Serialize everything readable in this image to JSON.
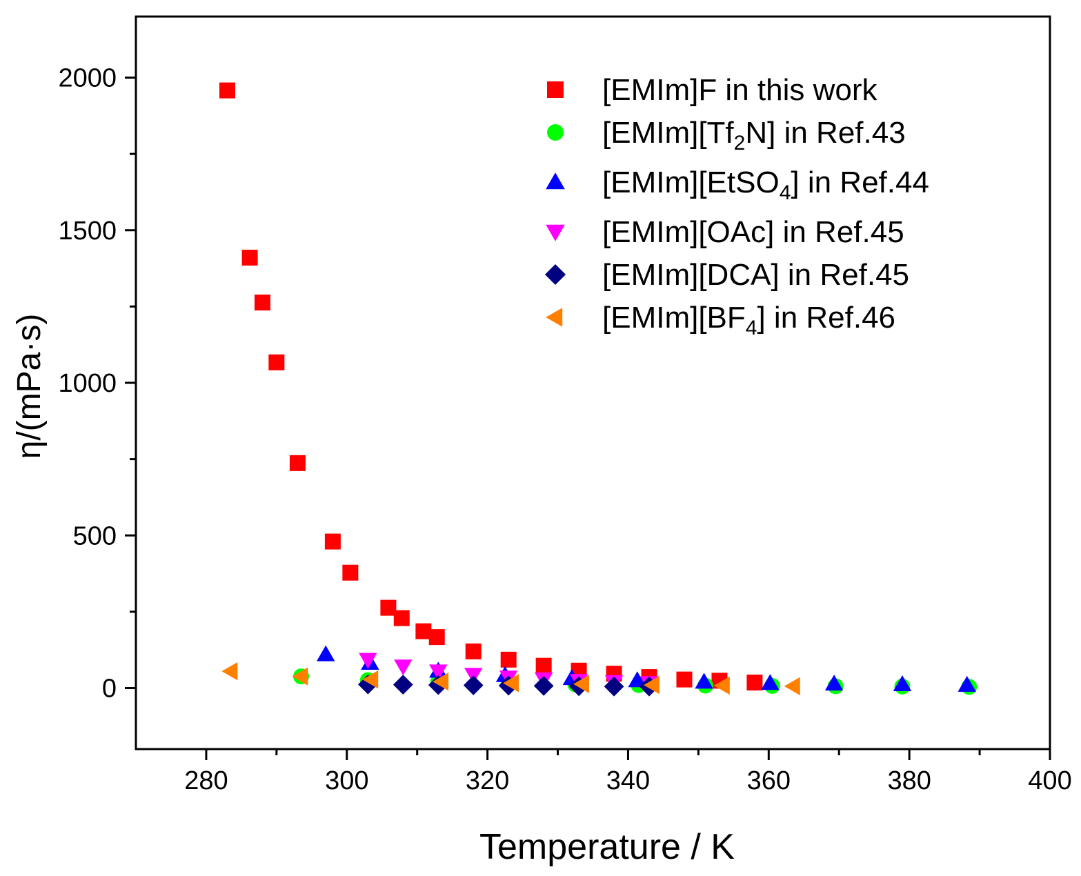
{
  "chart_data": {
    "type": "scatter",
    "title": "",
    "xlabel": "Temperature / K",
    "ylabel": "η/(mPa·s)",
    "xlim": [
      270,
      400
    ],
    "ylim": [
      -200,
      2200
    ],
    "xticks": [
      280,
      300,
      320,
      340,
      360,
      380,
      400
    ],
    "yticks": [
      0,
      500,
      1000,
      1500,
      2000
    ],
    "grid": false,
    "legend_position": "top-right",
    "series": [
      {
        "name": "[EMIm]F in this work",
        "label_parts": [
          {
            "t": "[EMIm]F in this work"
          }
        ],
        "marker": "square",
        "color": "#ff0000",
        "x": [
          283,
          286.2,
          288,
          290,
          293,
          298,
          300.5,
          305.9,
          307.8,
          310.9,
          312.8,
          318,
          323,
          328,
          333,
          338,
          343,
          348,
          353,
          358
        ],
        "y": [
          1958,
          1410,
          1263,
          1067,
          737,
          480,
          378,
          263,
          229,
          186,
          167,
          120,
          93,
          73,
          57,
          47,
          36,
          28,
          24,
          18
        ]
      },
      {
        "name": "[EMIm][Tf2N] in Ref.43",
        "label_parts": [
          {
            "t": "[EMIm][Tf"
          },
          {
            "t": "2",
            "sub": true
          },
          {
            "t": "N] in Ref.43"
          }
        ],
        "marker": "circle",
        "color": "#00ff00",
        "x": [
          293.5,
          303,
          313,
          323,
          332.5,
          341.5,
          351,
          360.5,
          369.5,
          379,
          388.5
        ],
        "y": [
          38,
          26,
          20,
          15,
          12,
          10,
          8,
          7,
          6,
          5,
          4
        ]
      },
      {
        "name": "[EMIm][EtSO4] in Ref.44",
        "label_parts": [
          {
            "t": "[EMIm][EtSO"
          },
          {
            "t": "4",
            "sub": true
          },
          {
            "t": "] in Ref.44"
          }
        ],
        "marker": "triangle-up",
        "color": "#0000ff",
        "x": [
          297,
          303.3,
          313,
          322.5,
          332,
          341.3,
          350.8,
          360.2,
          369.3,
          379,
          388.2
        ],
        "y": [
          110,
          82,
          56,
          42,
          32,
          25,
          20,
          16,
          14,
          12,
          10
        ]
      },
      {
        "name": "[EMIm][OAc] in Ref.45",
        "label_parts": [
          {
            "t": "[EMIm][OAc] in Ref.45"
          }
        ],
        "marker": "triangle-down",
        "color": "#ff00ff",
        "x": [
          303,
          308,
          313,
          318,
          323,
          328,
          333,
          338,
          343
        ],
        "y": [
          93,
          71,
          55,
          44,
          35,
          29,
          24,
          20,
          17
        ]
      },
      {
        "name": "[EMIm][DCA] in Ref.45",
        "label_parts": [
          {
            "t": "[EMIm][DCA] in Ref.45"
          }
        ],
        "marker": "diamond",
        "color": "#000080",
        "x": [
          303,
          308,
          313,
          318,
          323,
          328,
          333,
          338,
          343
        ],
        "y": [
          12,
          11,
          10,
          9,
          8,
          7,
          6,
          5,
          5
        ]
      },
      {
        "name": "[EMIm][BF4] in Ref.46",
        "label_parts": [
          {
            "t": "[EMIm][BF"
          },
          {
            "t": "4",
            "sub": true
          },
          {
            "t": "] in Ref.46"
          }
        ],
        "marker": "triangle-left",
        "color": "#ff8000",
        "x": [
          283.5,
          293.5,
          303.5,
          313.5,
          323.5,
          333.5,
          343.5,
          353.5,
          363.5
        ],
        "y": [
          55,
          38,
          28,
          21,
          16,
          13,
          10,
          8,
          6
        ]
      }
    ]
  }
}
